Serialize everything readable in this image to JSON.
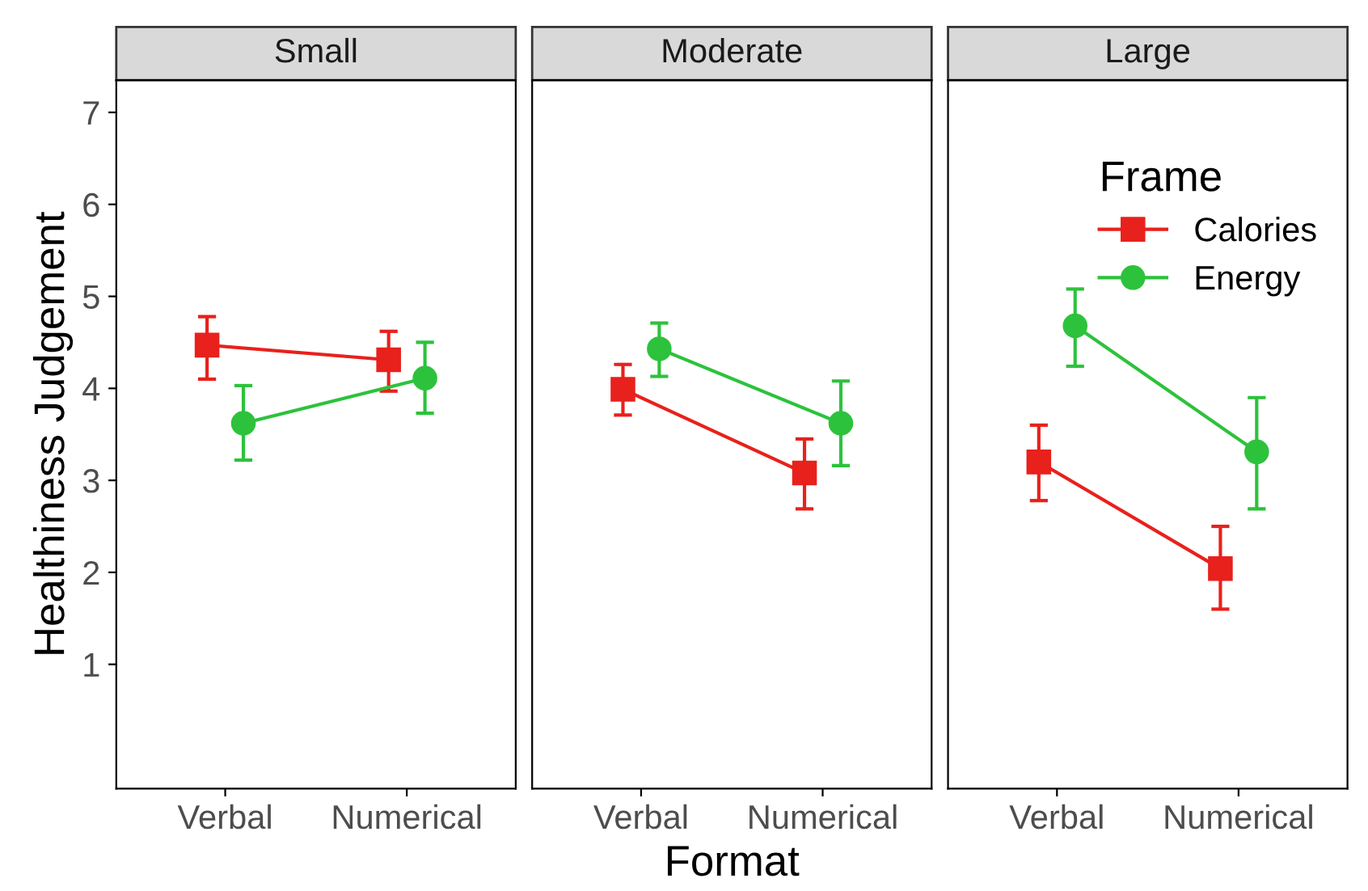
{
  "chart_data": [
    {
      "type": "line",
      "title": "Small",
      "ylabel": "Healthiness Judgement",
      "categories": [
        "Verbal",
        "Numerical"
      ],
      "ylim": [
        -0.35,
        7.35
      ],
      "yticks": [
        1,
        2,
        3,
        4,
        5,
        6,
        7
      ],
      "grid": false,
      "series": [
        {
          "color": "#e8211c",
          "marker": "square",
          "values": [
            4.47,
            4.31
          ],
          "errors": [
            [
              4.1,
              4.78
            ],
            [
              3.97,
              4.62
            ]
          ]
        },
        {
          "color": "#2dc23c",
          "marker": "circle",
          "values": [
            3.62,
            4.11
          ],
          "errors": [
            [
              3.22,
              4.03
            ],
            [
              3.73,
              4.5
            ]
          ]
        }
      ]
    },
    {
      "type": "line",
      "title": "Moderate",
      "xlabel": "Format",
      "categories": [
        "Verbal",
        "Numerical"
      ],
      "ylim": [
        -0.35,
        7.35
      ],
      "tick_labels": "x",
      "grid": false,
      "series": [
        {
          "color": "#e8211c",
          "marker": "square",
          "values": [
            3.99,
            3.08
          ],
          "errors": [
            [
              3.71,
              4.26
            ],
            [
              2.69,
              3.45
            ]
          ]
        },
        {
          "color": "#2dc23c",
          "marker": "circle",
          "values": [
            4.43,
            3.62
          ],
          "errors": [
            [
              4.13,
              4.71
            ],
            [
              3.16,
              4.08
            ]
          ]
        }
      ]
    },
    {
      "type": "line",
      "title": "Large",
      "legend_title": "Frame",
      "categories": [
        "Verbal",
        "Numerical"
      ],
      "ylim": [
        -0.35,
        7.35
      ],
      "tick_labels": "x",
      "grid": false,
      "legend": "top right",
      "series": [
        {
          "name": "Calories",
          "color": "#e8211c",
          "marker": "square",
          "values": [
            3.2,
            2.04
          ],
          "errors": [
            [
              2.78,
              3.6
            ],
            [
              1.6,
              2.5
            ]
          ]
        },
        {
          "name": "Energy",
          "color": "#2dc23c",
          "marker": "circle",
          "values": [
            4.68,
            3.31
          ],
          "errors": [
            [
              4.24,
              5.08
            ],
            [
              2.69,
              3.9
            ]
          ]
        }
      ]
    }
  ]
}
